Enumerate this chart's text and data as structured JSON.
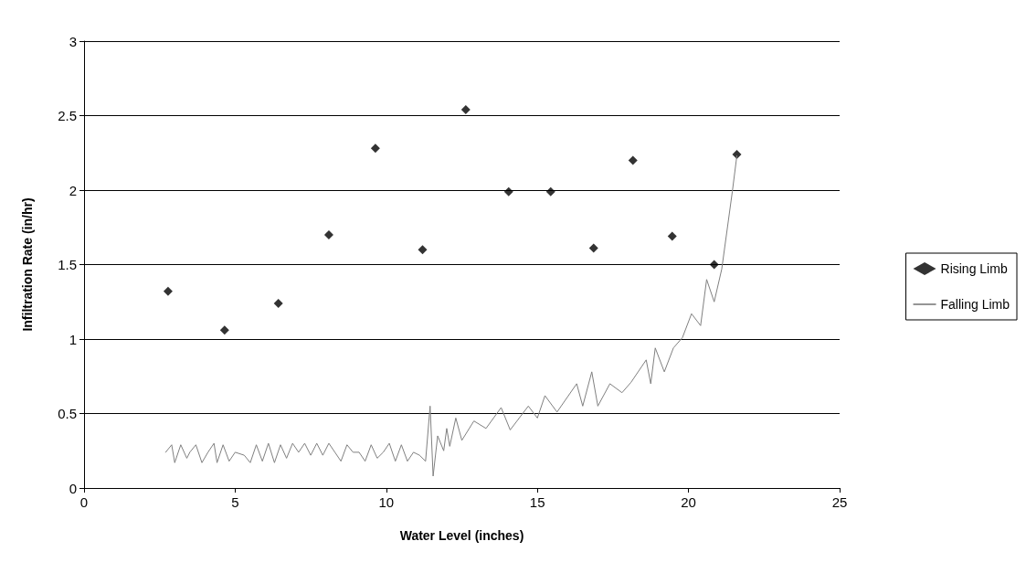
{
  "chart_data": {
    "type": "scatter",
    "xlabel": "Water Level (inches)",
    "ylabel": "Infiltration Rate (in/hr)",
    "xlim": [
      0,
      25
    ],
    "xticks": [
      0,
      5,
      10,
      15,
      20,
      25
    ],
    "ylim": [
      0,
      3
    ],
    "yticks": [
      0,
      0.5,
      1,
      1.5,
      2,
      2.5,
      3
    ],
    "grid": "y",
    "legend": "right",
    "series": [
      {
        "name": "Rising Limb",
        "type": "scatter",
        "marker": "diamond",
        "color": "#000000",
        "x": [
          2.78,
          4.65,
          6.43,
          8.1,
          9.64,
          11.2,
          12.63,
          14.05,
          15.44,
          16.86,
          18.16,
          19.46,
          20.85,
          21.6
        ],
        "values": [
          1.32,
          1.06,
          1.24,
          1.7,
          2.28,
          1.6,
          2.54,
          1.99,
          1.99,
          1.61,
          2.2,
          1.69,
          1.5,
          2.24
        ]
      },
      {
        "name": "Falling Limb",
        "type": "line",
        "marker": "none",
        "line_style": "solid",
        "color": "#808080",
        "x": [
          2.7,
          2.9,
          3.0,
          3.2,
          3.4,
          3.5,
          3.7,
          3.9,
          4.1,
          4.3,
          4.4,
          4.6,
          4.8,
          5.0,
          5.3,
          5.5,
          5.7,
          5.9,
          6.1,
          6.3,
          6.5,
          6.7,
          6.9,
          7.1,
          7.3,
          7.5,
          7.7,
          7.9,
          8.1,
          8.3,
          8.5,
          8.7,
          8.9,
          9.1,
          9.3,
          9.5,
          9.7,
          9.9,
          10.1,
          10.3,
          10.5,
          10.7,
          10.9,
          11.1,
          11.3,
          11.45,
          11.55,
          11.7,
          11.9,
          12.0,
          12.1,
          12.3,
          12.5,
          12.9,
          13.3,
          13.8,
          14.1,
          14.7,
          15.0,
          15.25,
          15.65,
          16.3,
          16.5,
          16.8,
          17.0,
          17.4,
          17.8,
          18.1,
          18.6,
          18.75,
          18.9,
          19.2,
          19.5,
          19.8,
          20.1,
          20.4,
          20.6,
          20.85,
          21.1,
          21.45,
          21.6
        ],
        "values": [
          0.24,
          0.29,
          0.17,
          0.29,
          0.2,
          0.24,
          0.29,
          0.17,
          0.24,
          0.3,
          0.17,
          0.29,
          0.18,
          0.24,
          0.22,
          0.17,
          0.29,
          0.18,
          0.3,
          0.17,
          0.29,
          0.2,
          0.3,
          0.24,
          0.3,
          0.22,
          0.3,
          0.22,
          0.3,
          0.24,
          0.18,
          0.29,
          0.24,
          0.24,
          0.18,
          0.29,
          0.2,
          0.24,
          0.3,
          0.18,
          0.29,
          0.18,
          0.24,
          0.22,
          0.18,
          0.55,
          0.08,
          0.35,
          0.25,
          0.4,
          0.28,
          0.47,
          0.32,
          0.45,
          0.4,
          0.54,
          0.39,
          0.55,
          0.47,
          0.62,
          0.51,
          0.7,
          0.55,
          0.78,
          0.55,
          0.7,
          0.64,
          0.71,
          0.86,
          0.7,
          0.94,
          0.78,
          0.94,
          1.01,
          1.17,
          1.09,
          1.4,
          1.25,
          1.47,
          1.99,
          2.23
        ]
      }
    ]
  }
}
